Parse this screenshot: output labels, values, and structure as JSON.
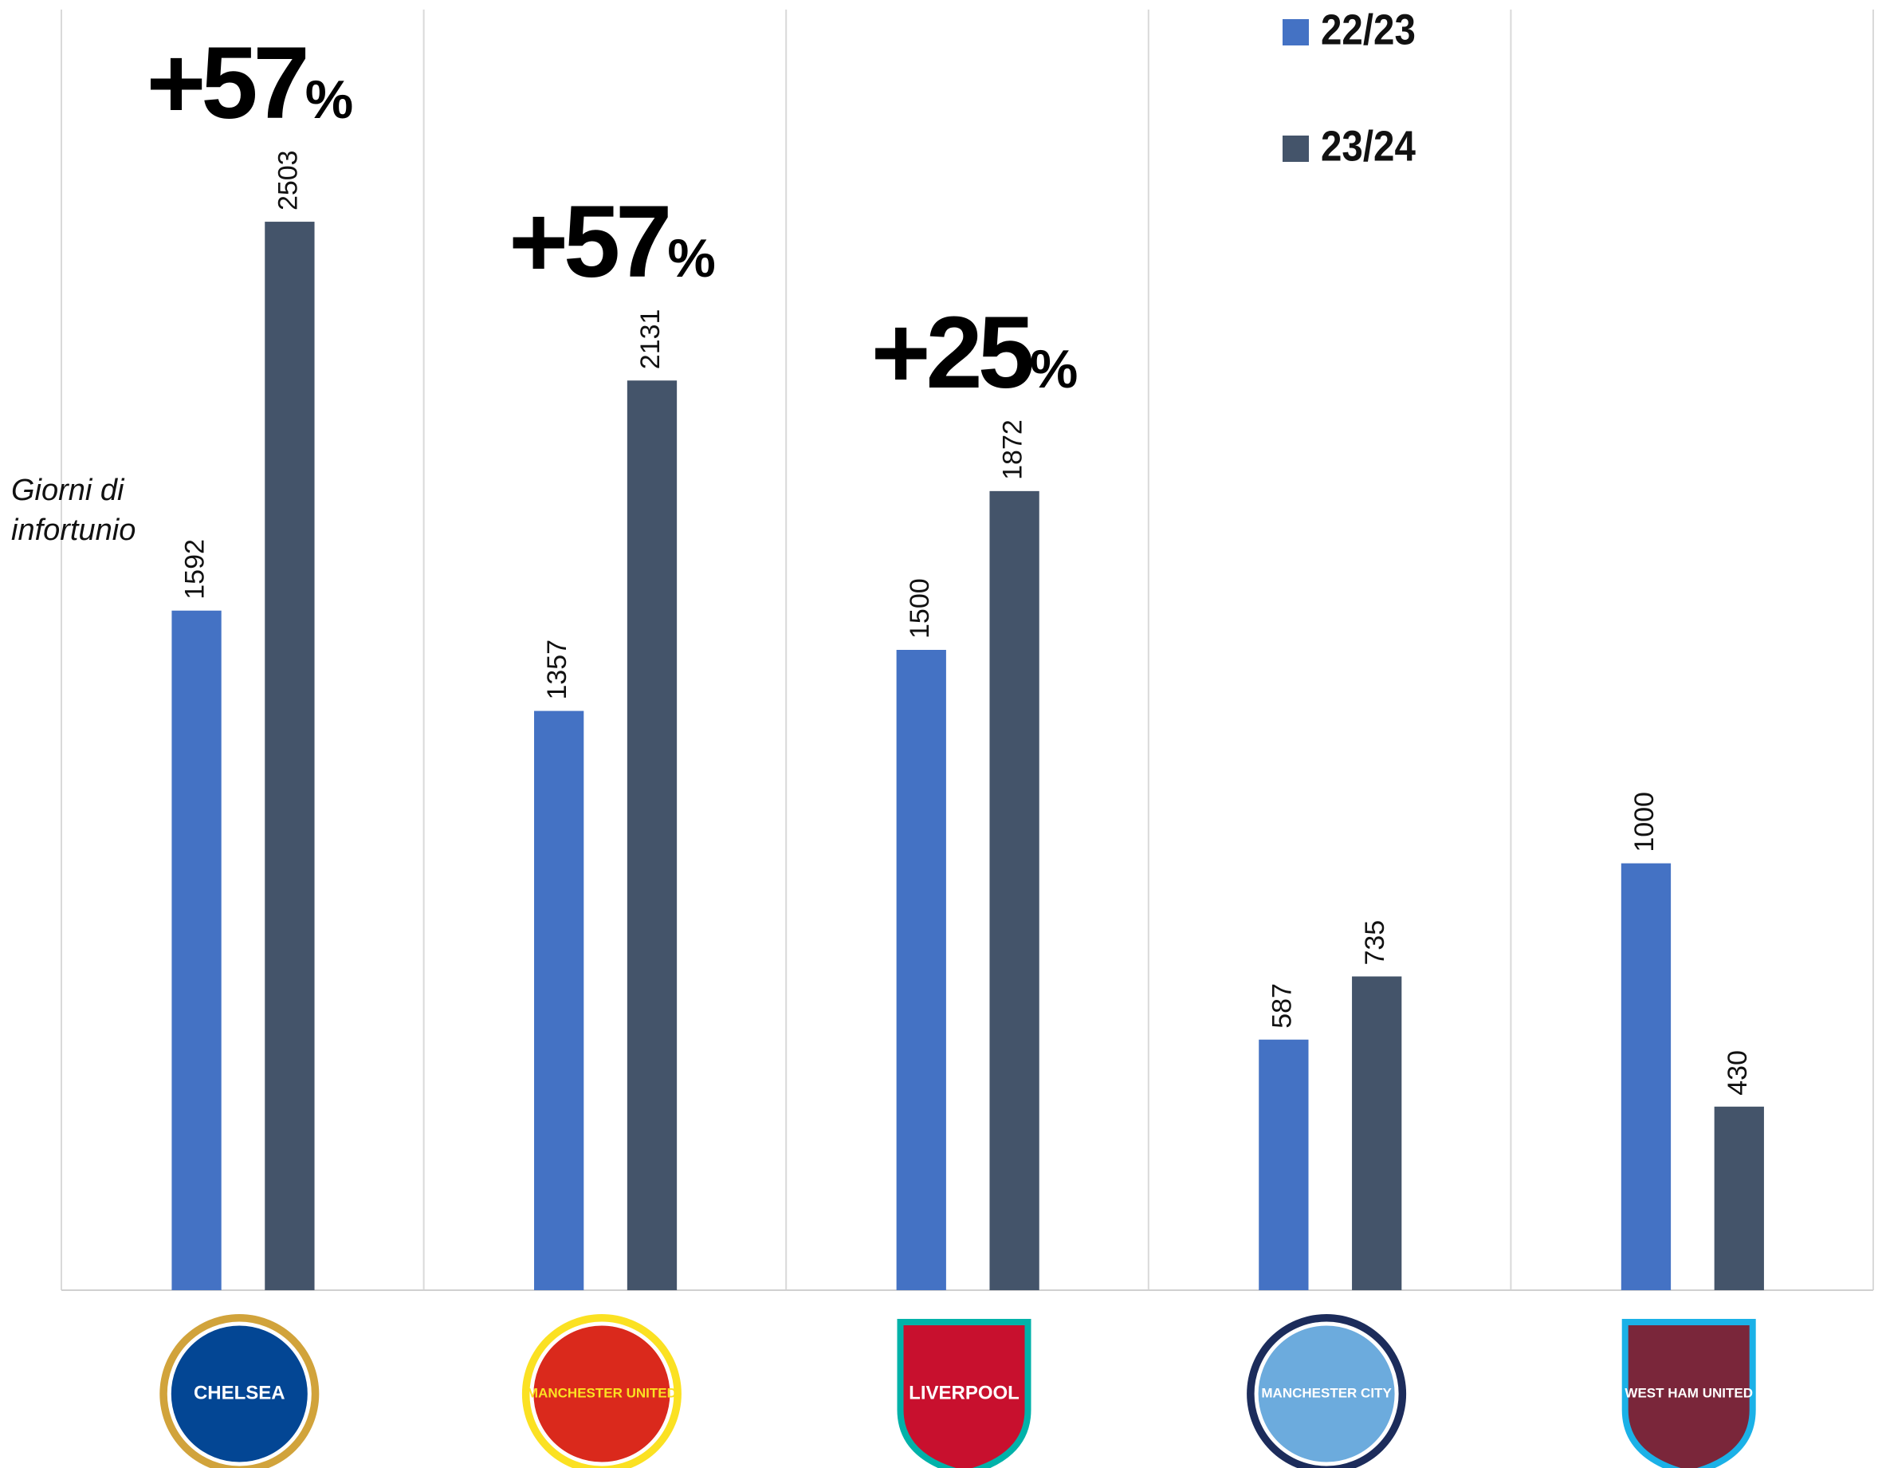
{
  "chart_data": {
    "type": "bar",
    "ylabel": "Giorni di infortunio",
    "categories": [
      "CHELSEA",
      "MANCHESTER UNITED",
      "LIVERPOOL",
      "MANCHESTER CITY",
      "WEST HAM UNITED"
    ],
    "series": [
      {
        "name": "22/23",
        "color": "#4472c4",
        "values": [
          1592,
          1357,
          1500,
          587,
          1000
        ]
      },
      {
        "name": "23/24",
        "color": "#44546a",
        "values": [
          2503,
          2131,
          1872,
          735,
          430
        ]
      }
    ],
    "ylim": [
      0,
      3000
    ],
    "grid": true,
    "legend": "top-right",
    "annotations": [
      {
        "text": "+57",
        "unit": "%"
      },
      {
        "text": "+57",
        "unit": "%"
      },
      {
        "text": "+25",
        "unit": "%"
      }
    ]
  }
}
